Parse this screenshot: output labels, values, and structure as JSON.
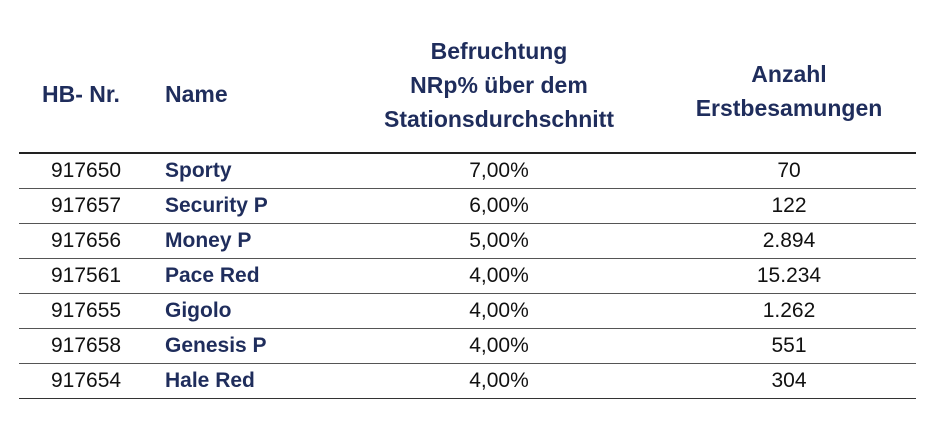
{
  "header": {
    "hb_nr": "HB- Nr.",
    "name": "Name",
    "befruchtung_line1": "Befruchtung",
    "befruchtung_line2": "NRp% über dem",
    "befruchtung_line3": "Stationsdurchschnitt",
    "anzahl_line1": "Anzahl",
    "anzahl_line2": "Erstbesamungen"
  },
  "rows": [
    {
      "hb_nr": "917650",
      "name": "Sporty",
      "befruchtung": "7,00%",
      "anzahl": "70"
    },
    {
      "hb_nr": "917657",
      "name": "Security P",
      "befruchtung": "6,00%",
      "anzahl": "122"
    },
    {
      "hb_nr": "917656",
      "name": "Money P",
      "befruchtung": "5,00%",
      "anzahl": "2.894"
    },
    {
      "hb_nr": "917561",
      "name": "Pace Red",
      "befruchtung": "4,00%",
      "anzahl": "15.234"
    },
    {
      "hb_nr": "917655",
      "name": "Gigolo",
      "befruchtung": "4,00%",
      "anzahl": "1.262"
    },
    {
      "hb_nr": "917658",
      "name": "Genesis P",
      "befruchtung": "4,00%",
      "anzahl": "551"
    },
    {
      "hb_nr": "917654",
      "name": "Hale Red",
      "befruchtung": "4,00%",
      "anzahl": "304"
    }
  ],
  "colors": {
    "header_text": "#1f2d5c",
    "name_text": "#1f2d5c",
    "body_text": "#111111"
  }
}
